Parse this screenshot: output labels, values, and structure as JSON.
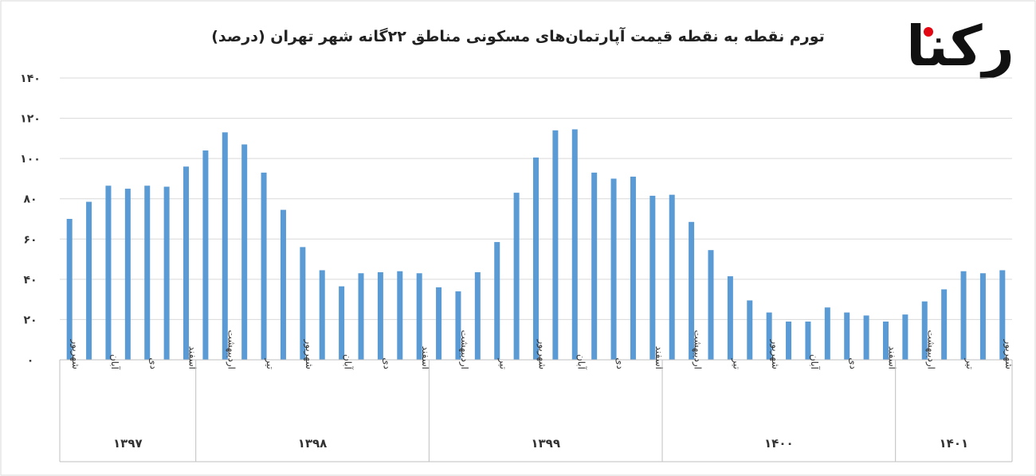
{
  "chart_data": {
    "type": "bar",
    "title": "تورم نقطه به نقطه قیمت آپارتمان‌های مسکونی مناطق ۲۲گانه شهر تهران (درصد)",
    "ylim": [
      0,
      140
    ],
    "yticks": [
      "۰",
      "۲۰",
      "۴۰",
      "۶۰",
      "۸۰",
      "۱۰۰",
      "۱۲۰",
      "۱۴۰"
    ],
    "ytick_values": [
      0,
      20,
      40,
      60,
      80,
      100,
      120,
      140
    ],
    "grid": true,
    "bar_color": "#5b9bd5",
    "values": [
      70,
      78.5,
      86.5,
      85,
      86.5,
      86,
      96,
      104,
      113,
      107,
      93,
      74.5,
      56,
      44.5,
      36.5,
      43,
      43.5,
      44,
      43,
      36,
      34,
      43.5,
      58.5,
      83,
      100.5,
      114,
      114.5,
      93,
      90,
      91,
      81.5,
      82,
      68.5,
      54.5,
      41.5,
      29.5,
      23.5,
      19,
      19,
      26,
      23.5,
      22,
      19,
      22.5,
      29,
      35,
      44,
      43,
      44.5
    ],
    "x_labels": [
      {
        "index": 0,
        "text": "شهریور"
      },
      {
        "index": 2,
        "text": "آبان"
      },
      {
        "index": 4,
        "text": "دی"
      },
      {
        "index": 6,
        "text": "اسفند"
      },
      {
        "index": 8,
        "text": "اردیبهشت"
      },
      {
        "index": 10,
        "text": "تیر"
      },
      {
        "index": 12,
        "text": "شهریور"
      },
      {
        "index": 14,
        "text": "آبان"
      },
      {
        "index": 16,
        "text": "دی"
      },
      {
        "index": 18,
        "text": "اسفند"
      },
      {
        "index": 20,
        "text": "اردیبهشت"
      },
      {
        "index": 22,
        "text": "تیر"
      },
      {
        "index": 24,
        "text": "شهریور"
      },
      {
        "index": 26,
        "text": "آبان"
      },
      {
        "index": 28,
        "text": "دی"
      },
      {
        "index": 30,
        "text": "اسفند"
      },
      {
        "index": 32,
        "text": "اردیبهشت"
      },
      {
        "index": 34,
        "text": "تیر"
      },
      {
        "index": 36,
        "text": "شهریور"
      },
      {
        "index": 38,
        "text": "آبان"
      },
      {
        "index": 40,
        "text": "دی"
      },
      {
        "index": 42,
        "text": "اسفند"
      },
      {
        "index": 44,
        "text": "اردیبهشت"
      },
      {
        "index": 46,
        "text": "تیر"
      },
      {
        "index": 48,
        "text": "شهریور"
      }
    ],
    "years": [
      {
        "label": "۱۳۹۷",
        "start": 0,
        "end": 6
      },
      {
        "label": "۱۳۹۸",
        "start": 7,
        "end": 18
      },
      {
        "label": "۱۳۹۹",
        "start": 19,
        "end": 30
      },
      {
        "label": "۱۴۰۰",
        "start": 31,
        "end": 42
      },
      {
        "label": "۱۴۰۱",
        "start": 43,
        "end": 48
      }
    ]
  },
  "logo": {
    "text": "رکنا",
    "color_dark": "#111111",
    "color_accent": "#e30613"
  }
}
